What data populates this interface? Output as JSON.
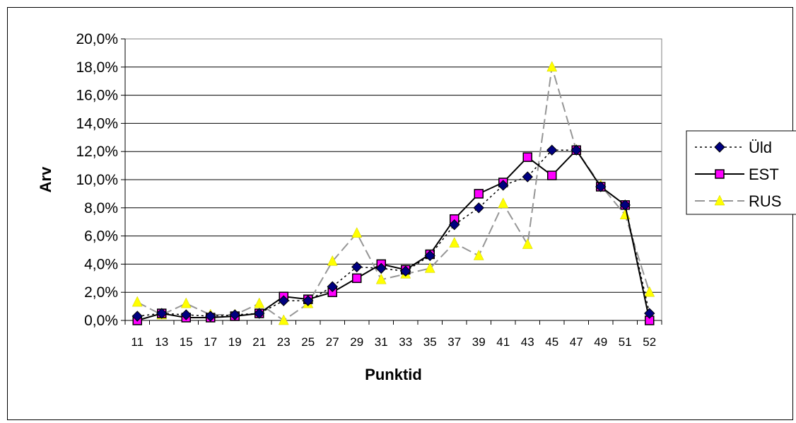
{
  "chart_data": {
    "type": "line",
    "xlabel": "Punktid",
    "ylabel": "Arv",
    "ylim": [
      0,
      20
    ],
    "yticks": [
      "0,0%",
      "2,0%",
      "4,0%",
      "6,0%",
      "8,0%",
      "10,0%",
      "12,0%",
      "14,0%",
      "16,0%",
      "18,0%",
      "20,0%"
    ],
    "categories": [
      "11",
      "13",
      "15",
      "17",
      "19",
      "21",
      "23",
      "25",
      "27",
      "29",
      "31",
      "33",
      "35",
      "37",
      "39",
      "41",
      "43",
      "45",
      "47",
      "49",
      "51",
      "52"
    ],
    "grid": "horizontal",
    "legend_position": "right",
    "series": [
      {
        "name": "Üld",
        "marker": "diamond",
        "line": "dotted",
        "color": "#000080",
        "values": [
          0.3,
          0.5,
          0.4,
          0.3,
          0.4,
          0.5,
          1.4,
          1.4,
          2.4,
          3.8,
          3.7,
          3.5,
          4.6,
          6.8,
          8.0,
          9.6,
          10.2,
          12.1,
          12.1,
          9.5,
          8.2,
          0.5
        ]
      },
      {
        "name": "EST",
        "marker": "square",
        "line": "solid",
        "color": "#ff00ff",
        "values": [
          0.0,
          0.5,
          0.2,
          0.2,
          0.3,
          0.5,
          1.7,
          1.5,
          2.0,
          3.0,
          4.0,
          3.6,
          4.7,
          7.2,
          9.0,
          9.8,
          11.6,
          10.3,
          12.1,
          9.5,
          8.2,
          0.0
        ]
      },
      {
        "name": "RUS",
        "marker": "triangle",
        "line": "dashed",
        "color": "#ffff00",
        "values": [
          1.3,
          0.4,
          1.2,
          0.4,
          0.4,
          1.2,
          0.0,
          1.2,
          4.2,
          6.2,
          2.9,
          3.3,
          3.7,
          5.5,
          4.6,
          8.3,
          5.4,
          18.0,
          12.1,
          9.6,
          7.5,
          2.0
        ]
      }
    ]
  }
}
